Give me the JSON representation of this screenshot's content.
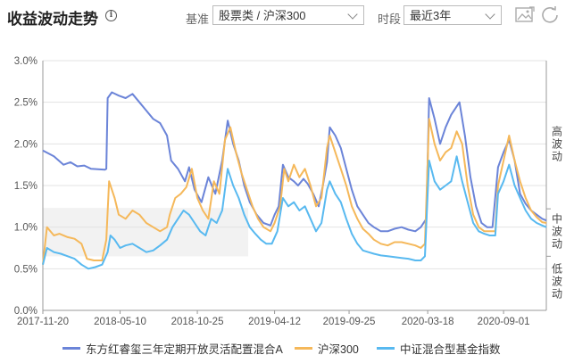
{
  "header": {
    "title": "收益波动走势",
    "info_icon": "info-circle-icon",
    "benchmark_label": "基准",
    "benchmark_value": "股票类 / 沪深300",
    "period_label": "时段",
    "period_value": "最近3年",
    "tools": [
      "image-export-icon",
      "refresh-icon"
    ]
  },
  "right_labels": {
    "high": "高波动",
    "mid": "中波动",
    "low": "低波动"
  },
  "colors": {
    "fund": "#6b84d8",
    "csi300": "#f5b85a",
    "index": "#58b9f0",
    "band": "#f2f2f2",
    "grid": "#e3e3e3"
  },
  "chart_data": {
    "type": "line",
    "xlabel": "",
    "ylabel": "",
    "y_tick_labels": [
      "0.0%",
      "0.5%",
      "1.0%",
      "1.5%",
      "2.0%",
      "2.5%",
      "3.0%"
    ],
    "ylim": [
      0,
      3
    ],
    "x_tick_labels": [
      "2017-11-20",
      "2018-05-10",
      "2018-10-25",
      "2019-04-12",
      "2019-09-25",
      "2020-03-18",
      "2020-09-01"
    ],
    "x_ticks_months": [
      0,
      5.6,
      11.2,
      16.8,
      22.2,
      27.9,
      33.4
    ],
    "xlim_months": [
      0,
      36.5
    ],
    "shaded_band": [
      0.65,
      1.23
    ],
    "grid": true,
    "legend_position": "bottom",
    "series": [
      {
        "name": "东方红睿玺三年定期开放灵活配置混合A",
        "color_key": "fund",
        "points": [
          [
            0,
            1.92
          ],
          [
            0.8,
            1.85
          ],
          [
            1.5,
            1.75
          ],
          [
            2,
            1.78
          ],
          [
            2.5,
            1.73
          ],
          [
            3,
            1.74
          ],
          [
            3.5,
            1.7
          ],
          [
            4.5,
            1.69
          ],
          [
            4.6,
            1.7
          ],
          [
            4.7,
            2.55
          ],
          [
            5.0,
            2.62
          ],
          [
            5.5,
            2.58
          ],
          [
            6,
            2.55
          ],
          [
            6.5,
            2.6
          ],
          [
            7,
            2.5
          ],
          [
            7.5,
            2.4
          ],
          [
            8,
            2.3
          ],
          [
            8.5,
            2.25
          ],
          [
            9,
            2.1
          ],
          [
            9.3,
            1.8
          ],
          [
            9.8,
            1.7
          ],
          [
            10.3,
            1.55
          ],
          [
            10.6,
            1.72
          ],
          [
            11,
            1.45
          ],
          [
            11.5,
            1.3
          ],
          [
            12.0,
            1.6
          ],
          [
            12.5,
            1.4
          ],
          [
            13.0,
            1.8
          ],
          [
            13.4,
            2.28
          ],
          [
            13.8,
            2.0
          ],
          [
            14.2,
            1.8
          ],
          [
            14.6,
            1.5
          ],
          [
            15.0,
            1.3
          ],
          [
            15.5,
            1.15
          ],
          [
            16.0,
            1.05
          ],
          [
            16.5,
            1.02
          ],
          [
            16.8,
            1.15
          ],
          [
            17.1,
            1.25
          ],
          [
            17.4,
            1.75
          ],
          [
            17.8,
            1.6
          ],
          [
            18.2,
            1.55
          ],
          [
            18.5,
            1.5
          ],
          [
            18.9,
            1.58
          ],
          [
            19.2,
            1.52
          ],
          [
            19.6,
            1.4
          ],
          [
            20.0,
            1.25
          ],
          [
            20.3,
            1.5
          ],
          [
            20.6,
            1.78
          ],
          [
            20.8,
            2.2
          ],
          [
            21.2,
            2.1
          ],
          [
            21.6,
            1.95
          ],
          [
            22.0,
            1.7
          ],
          [
            22.4,
            1.45
          ],
          [
            22.8,
            1.25
          ],
          [
            23.2,
            1.15
          ],
          [
            23.6,
            1.05
          ],
          [
            24.0,
            1.0
          ],
          [
            24.5,
            0.95
          ],
          [
            25.0,
            0.95
          ],
          [
            25.5,
            0.98
          ],
          [
            26.0,
            1.0
          ],
          [
            26.5,
            0.97
          ],
          [
            27.0,
            0.95
          ],
          [
            27.4,
            1.0
          ],
          [
            27.8,
            1.1
          ],
          [
            28.0,
            2.55
          ],
          [
            28.4,
            2.3
          ],
          [
            28.8,
            2.0
          ],
          [
            29.2,
            2.2
          ],
          [
            29.6,
            2.35
          ],
          [
            30.0,
            2.45
          ],
          [
            30.2,
            2.5
          ],
          [
            30.6,
            2.1
          ],
          [
            31.0,
            1.6
          ],
          [
            31.4,
            1.25
          ],
          [
            31.8,
            1.05
          ],
          [
            32.2,
            1.0
          ],
          [
            32.6,
            1.0
          ],
          [
            33.0,
            1.72
          ],
          [
            33.4,
            1.9
          ],
          [
            33.8,
            2.05
          ],
          [
            34.2,
            1.8
          ],
          [
            34.6,
            1.4
          ],
          [
            35.0,
            1.28
          ],
          [
            35.4,
            1.2
          ],
          [
            35.8,
            1.15
          ],
          [
            36.2,
            1.1
          ],
          [
            36.5,
            1.08
          ]
        ]
      },
      {
        "name": "沪深300",
        "color_key": "csi300",
        "points": [
          [
            0,
            0.55
          ],
          [
            0.3,
            1.0
          ],
          [
            0.8,
            0.9
          ],
          [
            1.2,
            0.92
          ],
          [
            1.8,
            0.88
          ],
          [
            2.3,
            0.86
          ],
          [
            2.8,
            0.8
          ],
          [
            3.2,
            0.62
          ],
          [
            3.7,
            0.6
          ],
          [
            4.3,
            0.6
          ],
          [
            4.6,
            0.85
          ],
          [
            4.8,
            1.55
          ],
          [
            5.2,
            1.35
          ],
          [
            5.5,
            1.15
          ],
          [
            6.0,
            1.1
          ],
          [
            6.5,
            1.2
          ],
          [
            7.0,
            1.15
          ],
          [
            7.5,
            1.05
          ],
          [
            8.0,
            1.0
          ],
          [
            8.5,
            0.95
          ],
          [
            9.0,
            1.0
          ],
          [
            9.2,
            1.15
          ],
          [
            9.6,
            1.35
          ],
          [
            10.0,
            1.4
          ],
          [
            10.4,
            1.48
          ],
          [
            10.8,
            1.7
          ],
          [
            11.2,
            1.35
          ],
          [
            11.6,
            1.2
          ],
          [
            12.0,
            1.1
          ],
          [
            12.4,
            1.55
          ],
          [
            12.8,
            1.4
          ],
          [
            13.2,
            2.05
          ],
          [
            13.6,
            2.2
          ],
          [
            14.0,
            1.9
          ],
          [
            14.4,
            1.65
          ],
          [
            14.8,
            1.45
          ],
          [
            15.2,
            1.25
          ],
          [
            15.6,
            1.1
          ],
          [
            16.0,
            1.0
          ],
          [
            16.5,
            0.95
          ],
          [
            16.8,
            1.05
          ],
          [
            17.2,
            1.25
          ],
          [
            17.5,
            1.7
          ],
          [
            17.8,
            1.55
          ],
          [
            18.2,
            1.75
          ],
          [
            18.6,
            1.6
          ],
          [
            19.0,
            1.7
          ],
          [
            19.4,
            1.5
          ],
          [
            19.8,
            1.25
          ],
          [
            20.2,
            1.35
          ],
          [
            20.6,
            1.95
          ],
          [
            20.8,
            2.1
          ],
          [
            21.2,
            1.9
          ],
          [
            21.6,
            1.7
          ],
          [
            22.0,
            1.5
          ],
          [
            22.4,
            1.25
          ],
          [
            22.8,
            1.1
          ],
          [
            23.2,
            0.98
          ],
          [
            23.6,
            0.92
          ],
          [
            24.0,
            0.85
          ],
          [
            24.5,
            0.8
          ],
          [
            25.0,
            0.78
          ],
          [
            25.5,
            0.82
          ],
          [
            26.0,
            0.82
          ],
          [
            26.5,
            0.8
          ],
          [
            27.0,
            0.78
          ],
          [
            27.4,
            0.75
          ],
          [
            27.7,
            0.8
          ],
          [
            28.0,
            2.3
          ],
          [
            28.4,
            2.0
          ],
          [
            28.8,
            1.8
          ],
          [
            29.2,
            1.9
          ],
          [
            29.6,
            1.95
          ],
          [
            30.0,
            2.15
          ],
          [
            30.4,
            2.0
          ],
          [
            30.8,
            1.5
          ],
          [
            31.2,
            1.15
          ],
          [
            31.6,
            1.0
          ],
          [
            32.0,
            0.95
          ],
          [
            32.4,
            0.95
          ],
          [
            32.8,
            0.95
          ],
          [
            33.0,
            1.5
          ],
          [
            33.4,
            1.8
          ],
          [
            33.8,
            2.1
          ],
          [
            34.2,
            1.8
          ],
          [
            34.6,
            1.55
          ],
          [
            35.0,
            1.35
          ],
          [
            35.4,
            1.2
          ],
          [
            35.8,
            1.12
          ],
          [
            36.2,
            1.06
          ],
          [
            36.5,
            1.05
          ]
        ]
      },
      {
        "name": "中证混合型基金指数",
        "color_key": "index",
        "points": [
          [
            0,
            0.55
          ],
          [
            0.3,
            0.75
          ],
          [
            0.8,
            0.7
          ],
          [
            1.3,
            0.68
          ],
          [
            1.8,
            0.65
          ],
          [
            2.3,
            0.62
          ],
          [
            2.8,
            0.55
          ],
          [
            3.3,
            0.5
          ],
          [
            3.8,
            0.52
          ],
          [
            4.3,
            0.55
          ],
          [
            4.7,
            0.7
          ],
          [
            4.9,
            0.9
          ],
          [
            5.2,
            0.85
          ],
          [
            5.6,
            0.75
          ],
          [
            6.0,
            0.78
          ],
          [
            6.5,
            0.8
          ],
          [
            7.0,
            0.75
          ],
          [
            7.5,
            0.7
          ],
          [
            8.0,
            0.72
          ],
          [
            8.5,
            0.78
          ],
          [
            9.0,
            0.85
          ],
          [
            9.4,
            1.0
          ],
          [
            9.8,
            1.1
          ],
          [
            10.2,
            1.2
          ],
          [
            10.6,
            1.15
          ],
          [
            11.0,
            1.05
          ],
          [
            11.4,
            0.95
          ],
          [
            11.8,
            0.9
          ],
          [
            12.2,
            1.1
          ],
          [
            12.6,
            1.05
          ],
          [
            13.0,
            1.2
          ],
          [
            13.4,
            1.7
          ],
          [
            13.8,
            1.5
          ],
          [
            14.2,
            1.35
          ],
          [
            14.6,
            1.15
          ],
          [
            15.0,
            1.0
          ],
          [
            15.4,
            0.92
          ],
          [
            15.8,
            0.85
          ],
          [
            16.2,
            0.8
          ],
          [
            16.6,
            0.8
          ],
          [
            17.0,
            0.95
          ],
          [
            17.4,
            1.35
          ],
          [
            17.8,
            1.25
          ],
          [
            18.2,
            1.3
          ],
          [
            18.6,
            1.2
          ],
          [
            19.0,
            1.25
          ],
          [
            19.4,
            1.1
          ],
          [
            19.8,
            0.95
          ],
          [
            20.2,
            1.05
          ],
          [
            20.6,
            1.45
          ],
          [
            20.8,
            1.55
          ],
          [
            21.2,
            1.4
          ],
          [
            21.6,
            1.3
          ],
          [
            22.0,
            1.1
          ],
          [
            22.4,
            0.92
          ],
          [
            22.8,
            0.8
          ],
          [
            23.2,
            0.72
          ],
          [
            23.6,
            0.7
          ],
          [
            24.0,
            0.68
          ],
          [
            24.5,
            0.66
          ],
          [
            25.0,
            0.65
          ],
          [
            25.5,
            0.64
          ],
          [
            26.0,
            0.63
          ],
          [
            26.5,
            0.62
          ],
          [
            27.0,
            0.6
          ],
          [
            27.4,
            0.6
          ],
          [
            27.7,
            0.65
          ],
          [
            28.0,
            1.8
          ],
          [
            28.4,
            1.55
          ],
          [
            28.8,
            1.45
          ],
          [
            29.2,
            1.5
          ],
          [
            29.6,
            1.55
          ],
          [
            30.0,
            1.85
          ],
          [
            30.4,
            1.55
          ],
          [
            30.8,
            1.3
          ],
          [
            31.2,
            1.05
          ],
          [
            31.6,
            0.95
          ],
          [
            32.0,
            0.92
          ],
          [
            32.4,
            0.9
          ],
          [
            32.8,
            0.9
          ],
          [
            33.0,
            1.4
          ],
          [
            33.4,
            1.55
          ],
          [
            33.8,
            1.75
          ],
          [
            34.2,
            1.5
          ],
          [
            34.6,
            1.35
          ],
          [
            35.0,
            1.2
          ],
          [
            35.4,
            1.1
          ],
          [
            35.8,
            1.05
          ],
          [
            36.2,
            1.02
          ],
          [
            36.5,
            1.0
          ]
        ]
      }
    ]
  }
}
